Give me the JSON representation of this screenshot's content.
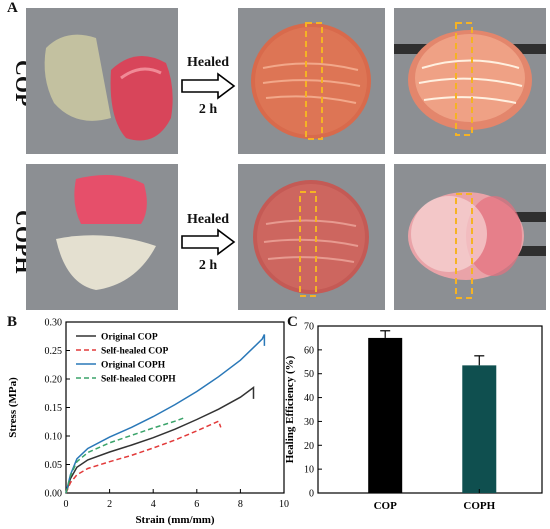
{
  "panel_a": {
    "letter": "A",
    "row1_label": "COP",
    "row2_label": "COPH",
    "arrow_line1": "Healed",
    "arrow_line2": "2 h"
  },
  "panel_b": {
    "letter": "B"
  },
  "panel_c": {
    "letter": "C"
  },
  "colors": {
    "original_cop": "#333333",
    "self_healed_cop": "#e23a3a",
    "original_coph": "#2a78b8",
    "self_healed_coph": "#3aa36a",
    "bar_cop": "#000000",
    "bar_coph": "#0f4f4f"
  },
  "chart_data": [
    {
      "type": "line",
      "xlabel": "Strain (mm/mm)",
      "ylabel": "Stress (MPa)",
      "xlim": [
        0,
        10
      ],
      "ylim": [
        0,
        0.3
      ],
      "xticks": [
        0,
        2,
        4,
        6,
        8,
        10
      ],
      "yticks": [
        0.0,
        0.05,
        0.1,
        0.15,
        0.2,
        0.25,
        0.3
      ],
      "legend": "top-left",
      "series": [
        {
          "name": "Original COP",
          "style": "solid",
          "color": "#333333",
          "x": [
            0,
            0.2,
            0.5,
            1,
            2,
            3,
            4,
            5,
            6,
            7,
            8,
            8.6,
            8.6
          ],
          "y": [
            0,
            0.025,
            0.045,
            0.058,
            0.072,
            0.084,
            0.097,
            0.112,
            0.129,
            0.147,
            0.168,
            0.185,
            0.165
          ]
        },
        {
          "name": "Self-healed COP",
          "style": "dashed",
          "color": "#e23a3a",
          "x": [
            0,
            0.2,
            0.5,
            1,
            2,
            3,
            4,
            5,
            6,
            7,
            7.1
          ],
          "y": [
            0,
            0.018,
            0.032,
            0.043,
            0.055,
            0.066,
            0.079,
            0.093,
            0.109,
            0.126,
            0.115
          ]
        },
        {
          "name": "Original COPH",
          "style": "solid",
          "color": "#2a78b8",
          "x": [
            0,
            0.2,
            0.5,
            1,
            2,
            3,
            4,
            5,
            6,
            7,
            8,
            9,
            9.1,
            9.1
          ],
          "y": [
            0,
            0.032,
            0.06,
            0.078,
            0.098,
            0.115,
            0.134,
            0.155,
            0.178,
            0.204,
            0.233,
            0.27,
            0.278,
            0.258
          ]
        },
        {
          "name": "Self-healed COPH",
          "style": "dashed",
          "color": "#3aa36a",
          "x": [
            0,
            0.2,
            0.5,
            1,
            2,
            3,
            4,
            5,
            5.5
          ],
          "y": [
            0,
            0.03,
            0.055,
            0.071,
            0.088,
            0.101,
            0.114,
            0.126,
            0.133
          ]
        }
      ]
    },
    {
      "type": "bar",
      "ylabel": "Healing Efficiency (%)",
      "ylim": [
        0,
        70
      ],
      "yticks": [
        0,
        10,
        20,
        30,
        40,
        50,
        60,
        70
      ],
      "categories": [
        "COP",
        "COPH"
      ],
      "values": [
        65,
        53.5
      ],
      "errors": [
        3,
        4
      ]
    }
  ]
}
